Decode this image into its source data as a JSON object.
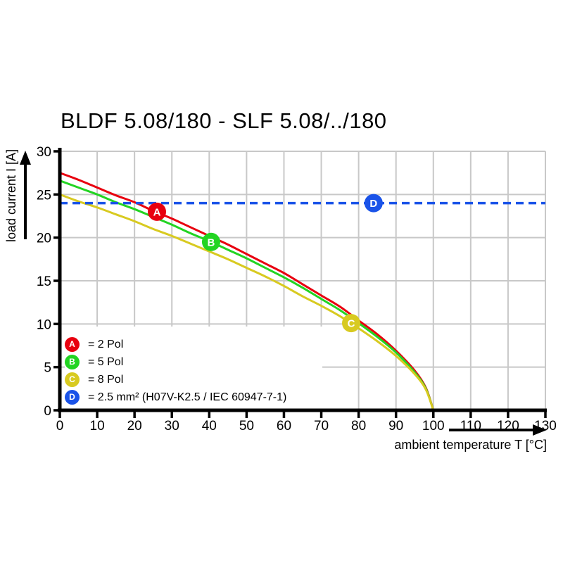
{
  "chart_data": {
    "type": "line",
    "title": "BLDF 5.08/180 - SLF 5.08/../180",
    "xlabel": "ambient temperature T [°C]",
    "ylabel": "load current I [A]",
    "xlim": [
      0,
      130
    ],
    "ylim": [
      0,
      30
    ],
    "xticks": [
      0,
      10,
      20,
      30,
      40,
      50,
      60,
      70,
      80,
      90,
      100,
      110,
      120,
      130
    ],
    "yticks": [
      0,
      5,
      10,
      15,
      20,
      25,
      30
    ],
    "grid": true,
    "grid_color": "#c8c8c8",
    "axis_color": "#000000",
    "dashed_line_value": 24,
    "series": [
      {
        "id": "A",
        "label": "2 Pol",
        "color": "#e8000f",
        "line_style": "solid",
        "x": [
          0,
          5,
          10,
          15,
          20,
          25,
          30,
          35,
          40,
          45,
          50,
          55,
          60,
          65,
          70,
          75,
          80,
          85,
          90,
          95,
          98,
          100
        ],
        "y": [
          27.5,
          26.7,
          25.8,
          24.9,
          24.1,
          23.1,
          22.2,
          21.2,
          20.2,
          19.2,
          18.1,
          17.0,
          15.9,
          14.6,
          13.3,
          12.0,
          10.4,
          8.8,
          6.9,
          4.6,
          2.6,
          0
        ],
        "marker": {
          "letter": "A",
          "x": 26,
          "y": 23.0
        }
      },
      {
        "id": "B",
        "label": "5 Pol",
        "color": "#22d422",
        "line_style": "solid",
        "x": [
          0,
          5,
          10,
          15,
          20,
          25,
          30,
          35,
          40,
          45,
          50,
          55,
          60,
          65,
          70,
          75,
          80,
          85,
          90,
          95,
          98,
          100
        ],
        "y": [
          26.6,
          25.8,
          25.0,
          24.1,
          23.3,
          22.4,
          21.5,
          20.5,
          19.6,
          18.6,
          17.6,
          16.5,
          15.4,
          14.2,
          12.9,
          11.6,
          10.1,
          8.5,
          6.7,
          4.4,
          2.5,
          0
        ],
        "marker": {
          "letter": "B",
          "x": 40.5,
          "y": 19.5
        }
      },
      {
        "id": "C",
        "label": "8 Pol",
        "color": "#d8ca20",
        "line_style": "solid",
        "x": [
          0,
          5,
          10,
          15,
          20,
          25,
          30,
          35,
          40,
          45,
          50,
          55,
          60,
          65,
          70,
          75,
          80,
          85,
          90,
          95,
          98,
          100
        ],
        "y": [
          25.0,
          24.2,
          23.5,
          22.7,
          21.9,
          21.0,
          20.2,
          19.3,
          18.4,
          17.5,
          16.5,
          15.5,
          14.4,
          13.2,
          12.1,
          10.9,
          9.5,
          8.0,
          6.3,
          4.2,
          2.4,
          0
        ],
        "marker": {
          "letter": "C",
          "x": 78,
          "y": 10.1
        }
      },
      {
        "id": "D",
        "label": "2.5 mm² (H07V-K2.5 / IEC 60947-7-1)",
        "color": "#1a53e8",
        "line_style": "dashed",
        "x": [
          0,
          130
        ],
        "y": [
          24,
          24
        ],
        "marker": {
          "letter": "D",
          "x": 84,
          "y": 24
        }
      }
    ],
    "legend": {
      "position": "bottom-left-inside",
      "items": [
        {
          "letter": "A",
          "color": "#e8000f",
          "text": "= 2 Pol"
        },
        {
          "letter": "B",
          "color": "#22d422",
          "text": "= 5 Pol"
        },
        {
          "letter": "C",
          "color": "#d8ca20",
          "text": "= 8 Pol"
        },
        {
          "letter": "D",
          "color": "#1a53e8",
          "text": "= 2.5 mm² (H07V-K2.5 / IEC 60947-7-1)"
        }
      ]
    }
  }
}
